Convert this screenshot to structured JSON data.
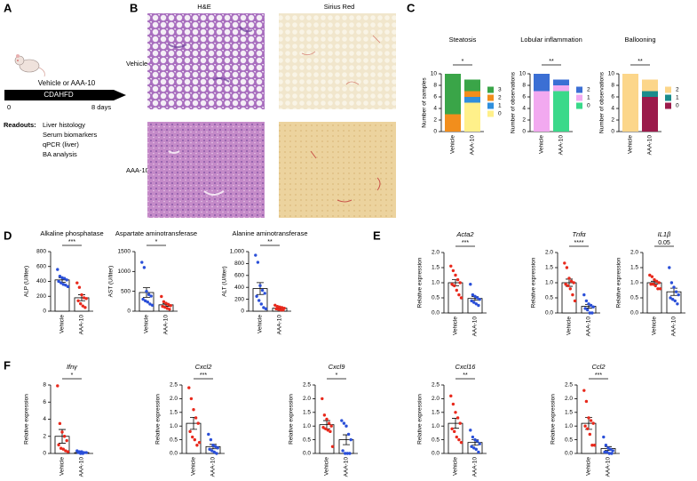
{
  "panel_labels": [
    "A",
    "B",
    "C",
    "D",
    "E",
    "F"
  ],
  "schematic": {
    "treatment": "Vehicle or AAA-10",
    "diet": "CDAHFD",
    "start": "0",
    "end": "8 days",
    "readouts_title": "Readouts:",
    "readouts": [
      "Liver histology",
      "Serum biomarkers",
      "qPCR (liver)",
      "BA analysis"
    ]
  },
  "histology": {
    "columns": [
      "H&E",
      "Sirius Red"
    ],
    "rows": [
      "Vehicle",
      "AAA-10"
    ]
  },
  "chart_data": [
    {
      "type": "stacked",
      "title": "Steatosis",
      "ylabel": "Number of samples",
      "categories": [
        "Vehicle",
        "AAA-10"
      ],
      "ylim": [
        0,
        10
      ],
      "yticks": [
        0,
        2,
        4,
        6,
        8,
        10
      ],
      "significance": "*",
      "series": [
        {
          "name": "3",
          "color": "#3aa548",
          "values": [
            7,
            2
          ]
        },
        {
          "name": "2",
          "color": "#f28e1c",
          "values": [
            3,
            1
          ]
        },
        {
          "name": "1",
          "color": "#2f8fdd",
          "values": [
            0,
            1
          ]
        },
        {
          "name": "0",
          "color": "#fff08a",
          "values": [
            0,
            5
          ]
        }
      ]
    },
    {
      "type": "stacked",
      "title": "Lobular inflammation",
      "ylabel": "Number of observations",
      "categories": [
        "Vehicle",
        "AAA-10"
      ],
      "ylim": [
        0,
        10
      ],
      "yticks": [
        0,
        2,
        4,
        6,
        8,
        10
      ],
      "significance": "**",
      "series": [
        {
          "name": "2",
          "color": "#3b6fd4",
          "values": [
            3,
            1
          ]
        },
        {
          "name": "1",
          "color": "#f2a9f0",
          "values": [
            7,
            1
          ]
        },
        {
          "name": "0",
          "color": "#3ad98a",
          "values": [
            0,
            7
          ]
        }
      ]
    },
    {
      "type": "stacked",
      "title": "Ballooning",
      "ylabel": "Number of observations",
      "categories": [
        "Vehicle",
        "AAA-10"
      ],
      "ylim": [
        0,
        10
      ],
      "yticks": [
        0,
        2,
        4,
        6,
        8,
        10
      ],
      "significance": "**",
      "series": [
        {
          "name": "2",
          "color": "#fcd68a",
          "values": [
            10,
            2
          ]
        },
        {
          "name": "1",
          "color": "#1a8c8c",
          "values": [
            0,
            1
          ]
        },
        {
          "name": "0",
          "color": "#9b1b4b",
          "values": [
            0,
            6
          ]
        }
      ]
    },
    {
      "type": "bar",
      "title": "Alkaline phosphatase",
      "ylabel": "ALP (U/liter)",
      "categories": [
        "Vehicle",
        "AAA-10"
      ],
      "ylim": [
        0,
        800
      ],
      "yticks": [
        0,
        200,
        400,
        600,
        800
      ],
      "significance": "***",
      "values": [
        420,
        180
      ],
      "errors": [
        30,
        40
      ],
      "colors": [
        "#2a4fd8",
        "#e8291c"
      ],
      "points": [
        [
          560,
          470,
          450,
          440,
          420,
          400,
          380,
          360,
          350,
          330
        ],
        [
          380,
          320,
          220,
          180,
          170,
          140,
          100,
          70,
          50
        ]
      ]
    },
    {
      "type": "bar",
      "title": "Aspartate aminotransferase",
      "ylabel": "AST (U/liter)",
      "categories": [
        "Vehicle",
        "AAA-10"
      ],
      "ylim": [
        0,
        1500
      ],
      "yticks": [
        0,
        500,
        1000,
        1500
      ],
      "significance": "*",
      "values": [
        470,
        160
      ],
      "errors": [
        120,
        35
      ],
      "colors": [
        "#2a4fd8",
        "#e8291c"
      ],
      "points": [
        [
          1230,
          1100,
          500,
          420,
          380,
          300,
          260,
          230,
          180,
          150
        ],
        [
          370,
          240,
          200,
          170,
          140,
          120,
          100,
          70,
          50
        ]
      ]
    },
    {
      "type": "bar",
      "title": "Alanine aminotransferase",
      "ylabel": "ALT (U/liter)",
      "categories": [
        "Vehicle",
        "AAA-10"
      ],
      "ylim": [
        0,
        1000
      ],
      "yticks": [
        0,
        200,
        400,
        600,
        800,
        {
          "value": 1000,
          "label": "1,000"
        }
      ],
      "significance": "**",
      "values": [
        380,
        50
      ],
      "errors": [
        100,
        10
      ],
      "colors": [
        "#2a4fd8",
        "#e8291c"
      ],
      "points": [
        [
          940,
          820,
          430,
          350,
          300,
          250,
          180,
          120,
          60,
          40
        ],
        [
          100,
          80,
          70,
          60,
          50,
          40,
          30,
          20,
          20
        ]
      ]
    },
    {
      "type": "bar",
      "title": "Acta2",
      "ylabel": "Relative expression",
      "categories": [
        "Vehicle",
        "AAA-10"
      ],
      "ylim": [
        0,
        2
      ],
      "yticks": [
        {
          "value": 0,
          "label": "0.0"
        },
        0.5,
        {
          "value": 1,
          "label": "1.0"
        },
        1.5,
        {
          "value": 2,
          "label": "2.0"
        }
      ],
      "significance": "***",
      "values": [
        1.0,
        0.48
      ],
      "errors": [
        0.1,
        0.06
      ],
      "colors": [
        "#e8291c",
        "#2a4fd8"
      ],
      "points": [
        [
          1.55,
          1.4,
          1.25,
          1.1,
          1.0,
          0.95,
          0.9,
          0.75,
          0.6,
          0.5
        ],
        [
          0.95,
          0.6,
          0.55,
          0.5,
          0.45,
          0.4,
          0.35,
          0.3,
          0.25
        ]
      ]
    },
    {
      "type": "bar",
      "title": "Tnfα",
      "ylabel": "Relative expression",
      "categories": [
        "Vehicle",
        "AAA-10"
      ],
      "ylim": [
        0,
        2
      ],
      "yticks": [
        {
          "value": 0,
          "label": "0.0"
        },
        0.5,
        {
          "value": 1,
          "label": "1.0"
        },
        1.5,
        {
          "value": 2,
          "label": "2.0"
        }
      ],
      "significance": "****",
      "values": [
        1.0,
        0.22
      ],
      "errors": [
        0.12,
        0.06
      ],
      "colors": [
        "#e8291c",
        "#2a4fd8"
      ],
      "points": [
        [
          1.65,
          1.5,
          1.15,
          1.05,
          1.0,
          0.95,
          0.9,
          0.8,
          0.6,
          0.4
        ],
        [
          0.6,
          0.4,
          0.3,
          0.25,
          0.2,
          0.15,
          0.1,
          0.0,
          0.0
        ]
      ]
    },
    {
      "type": "bar",
      "title": "IL1β",
      "ylabel": "Relative expression",
      "categories": [
        "Vehicle",
        "AAA-10"
      ],
      "ylim": [
        0,
        2
      ],
      "yticks": [
        {
          "value": 0,
          "label": "0.0"
        },
        0.5,
        {
          "value": 1,
          "label": "1.0"
        },
        1.5,
        {
          "value": 2,
          "label": "2.0"
        }
      ],
      "significance": "0.05",
      "values": [
        1.0,
        0.7
      ],
      "errors": [
        0.05,
        0.12
      ],
      "colors": [
        "#e8291c",
        "#2a4fd8"
      ],
      "points": [
        [
          1.25,
          1.2,
          1.1,
          1.05,
          1.0,
          0.95,
          0.95,
          0.9,
          0.8,
          0.8
        ],
        [
          1.5,
          1.0,
          0.85,
          0.7,
          0.6,
          0.5,
          0.45,
          0.4,
          0.3
        ]
      ]
    },
    {
      "type": "bar",
      "title": "Ifnγ",
      "ylabel": "Relative expression",
      "categories": [
        "Vehicle",
        "AAA-10"
      ],
      "ylim": [
        0,
        8
      ],
      "yticks": [
        0,
        2,
        4,
        6,
        8
      ],
      "significance": "*",
      "values": [
        2.0,
        0.1
      ],
      "errors": [
        0.8,
        0.05
      ],
      "colors": [
        "#e8291c",
        "#2a4fd8"
      ],
      "points": [
        [
          7.9,
          3.5,
          2.5,
          2.0,
          1.5,
          1.0,
          0.6,
          0.5,
          0.3,
          0.2
        ],
        [
          0.3,
          0.2,
          0.2,
          0.1,
          0.1,
          0.1,
          0.0,
          0.0
        ]
      ]
    },
    {
      "type": "bar",
      "title": "Cxcl2",
      "ylabel": "Relative expression",
      "categories": [
        "Vehicle",
        "AAA-10"
      ],
      "ylim": [
        0,
        2.5
      ],
      "yticks": [
        {
          "value": 0,
          "label": "0.0"
        },
        0.5,
        {
          "value": 1,
          "label": "1.0"
        },
        1.5,
        {
          "value": 2,
          "label": "2.0"
        },
        2.5
      ],
      "significance": "***",
      "values": [
        1.1,
        0.25
      ],
      "errors": [
        0.22,
        0.08
      ],
      "colors": [
        "#e8291c",
        "#2a4fd8"
      ],
      "points": [
        [
          2.4,
          2.0,
          1.6,
          1.3,
          1.1,
          0.8,
          0.6,
          0.5,
          0.3,
          0.4
        ],
        [
          0.7,
          0.5,
          0.3,
          0.25,
          0.2,
          0.15,
          0.1,
          0.05,
          0.0
        ]
      ]
    },
    {
      "type": "bar",
      "title": "Cxcl9",
      "ylabel": "Relative expression",
      "categories": [
        "Vehicle",
        "AAA-10"
      ],
      "ylim": [
        0,
        2.5
      ],
      "yticks": [
        {
          "value": 0,
          "label": "0.0"
        },
        0.5,
        {
          "value": 1,
          "label": "1.0"
        },
        1.5,
        {
          "value": 2,
          "label": "2.0"
        },
        2.5
      ],
      "significance": "*",
      "values": [
        1.05,
        0.5
      ],
      "errors": [
        0.15,
        0.18
      ],
      "colors": [
        "#e8291c",
        "#2a4fd8"
      ],
      "points": [
        [
          2.0,
          1.4,
          1.25,
          1.1,
          1.0,
          0.95,
          0.9,
          0.85,
          0.8,
          0.25
        ],
        [
          1.2,
          1.1,
          1.0,
          0.7,
          0.5,
          0.1,
          0.0,
          0.0,
          0.0
        ]
      ]
    },
    {
      "type": "bar",
      "title": "Cxcl16",
      "ylabel": "Relative expression",
      "categories": [
        "Vehicle",
        "AAA-10"
      ],
      "ylim": [
        0,
        2.5
      ],
      "yticks": [
        {
          "value": 0,
          "label": "0.0"
        },
        0.5,
        {
          "value": 1,
          "label": "1.0"
        },
        1.5,
        {
          "value": 2,
          "label": "2.0"
        },
        2.5
      ],
      "significance": "**",
      "values": [
        1.1,
        0.4
      ],
      "errors": [
        0.18,
        0.1
      ],
      "colors": [
        "#e8291c",
        "#2a4fd8"
      ],
      "points": [
        [
          2.1,
          1.8,
          1.5,
          1.3,
          1.1,
          0.9,
          0.8,
          0.6,
          0.5,
          0.4
        ],
        [
          0.85,
          0.6,
          0.5,
          0.45,
          0.35,
          0.25,
          0.2,
          0.15,
          0.05
        ]
      ]
    },
    {
      "type": "bar",
      "title": "Ccl2",
      "ylabel": "Relative expression",
      "categories": [
        "Vehicle",
        "AAA-10"
      ],
      "ylim": [
        0,
        2.5
      ],
      "yticks": [
        {
          "value": 0,
          "label": "0.0"
        },
        0.5,
        {
          "value": 1,
          "label": "1.0"
        },
        1.5,
        {
          "value": 2,
          "label": "2.0"
        },
        2.5
      ],
      "significance": "***",
      "values": [
        1.1,
        0.18
      ],
      "errors": [
        0.22,
        0.07
      ],
      "colors": [
        "#e8291c",
        "#2a4fd8"
      ],
      "points": [
        [
          2.3,
          1.9,
          1.3,
          1.2,
          1.1,
          1.0,
          0.9,
          0.7,
          0.3,
          0.3
        ],
        [
          0.6,
          0.3,
          0.2,
          0.15,
          0.1,
          0.05,
          0.05,
          0.0,
          0.0
        ]
      ]
    }
  ]
}
